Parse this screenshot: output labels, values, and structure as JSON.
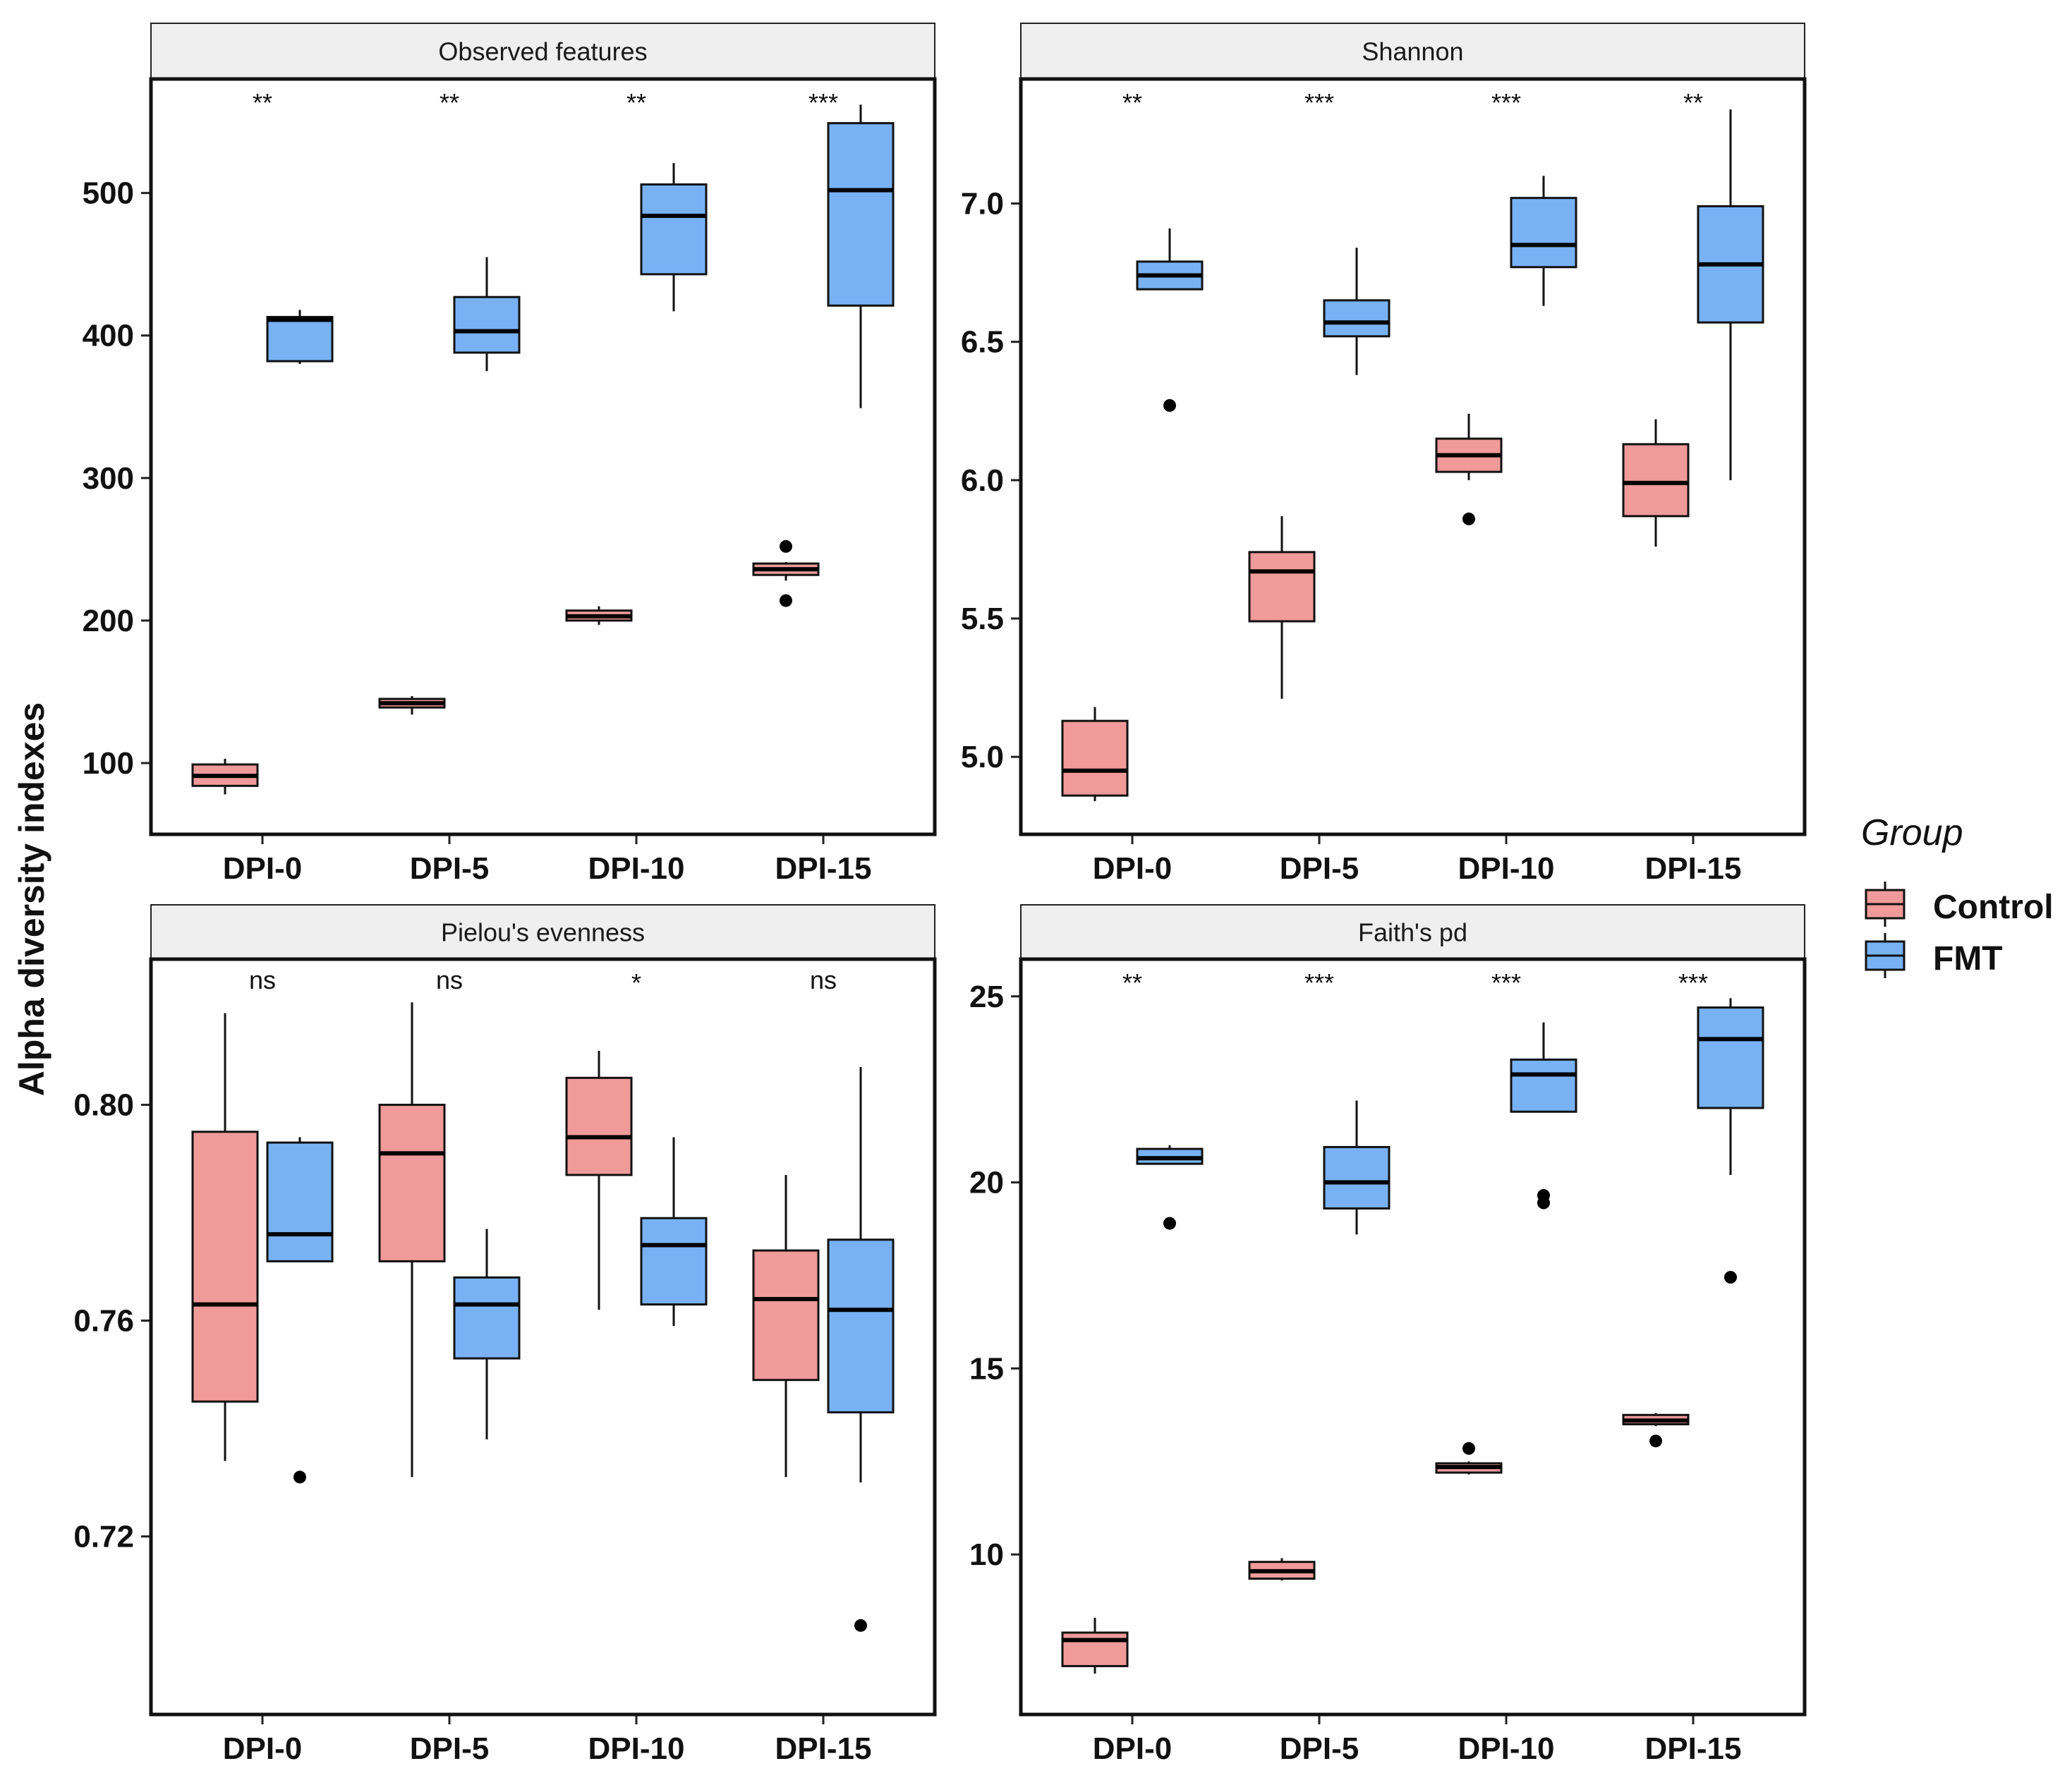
{
  "colors": {
    "control": "#F09A9A",
    "fmt": "#78B2F5",
    "strip": "#EFEFEF",
    "median": "#000000"
  },
  "chart_data": {
    "type": "boxplot",
    "ylabel": "Alpha diversity indexes",
    "categories": [
      "DPI-0",
      "DPI-5",
      "DPI-10",
      "DPI-15"
    ],
    "legend": {
      "title": "Group",
      "position": "right",
      "entries": [
        {
          "name": "Control",
          "color": "#F09A9A"
        },
        {
          "name": "FMT",
          "color": "#78B2F5"
        }
      ]
    },
    "panels": [
      {
        "title": "Observed features",
        "ylim": [
          50,
          580
        ],
        "ticks": [
          100,
          200,
          300,
          400,
          500
        ],
        "tick_labels": [
          "100",
          "200",
          "300",
          "400",
          "500"
        ],
        "significance": [
          "**",
          "**",
          "**",
          "***"
        ],
        "series": [
          {
            "name": "Control",
            "boxes": [
              {
                "lw": 78,
                "q1": 84,
                "med": 91,
                "q3": 99,
                "uw": 103,
                "out": []
              },
              {
                "lw": 134,
                "q1": 139,
                "med": 142,
                "q3": 145,
                "uw": 147,
                "out": []
              },
              {
                "lw": 197,
                "q1": 200,
                "med": 203,
                "q3": 207,
                "uw": 210,
                "out": []
              },
              {
                "lw": 228,
                "q1": 232,
                "med": 236,
                "q3": 240,
                "uw": 241,
                "out": [
                  252,
                  214
                ]
              }
            ]
          },
          {
            "name": "FMT",
            "boxes": [
              {
                "lw": 380,
                "q1": 382,
                "med": 411,
                "q3": 413,
                "uw": 418,
                "out": []
              },
              {
                "lw": 375,
                "q1": 388,
                "med": 403,
                "q3": 427,
                "uw": 455,
                "out": []
              },
              {
                "lw": 417,
                "q1": 443,
                "med": 484,
                "q3": 506,
                "uw": 521,
                "out": []
              },
              {
                "lw": 349,
                "q1": 421,
                "med": 502,
                "q3": 549,
                "uw": 562,
                "out": []
              }
            ]
          }
        ]
      },
      {
        "title": "Shannon",
        "ylim": [
          4.72,
          7.45
        ],
        "ticks": [
          5.0,
          5.5,
          6.0,
          6.5,
          7.0
        ],
        "tick_labels": [
          "5.0",
          "5.5",
          "6.0",
          "6.5",
          "7.0"
        ],
        "significance": [
          "**",
          "***",
          "***",
          "**"
        ],
        "series": [
          {
            "name": "Control",
            "boxes": [
              {
                "lw": 4.84,
                "q1": 4.86,
                "med": 4.95,
                "q3": 5.13,
                "uw": 5.18,
                "out": []
              },
              {
                "lw": 5.21,
                "q1": 5.49,
                "med": 5.67,
                "q3": 5.74,
                "uw": 5.87,
                "out": []
              },
              {
                "lw": 6.0,
                "q1": 6.03,
                "med": 6.09,
                "q3": 6.15,
                "uw": 6.24,
                "out": [
                  5.86
                ]
              },
              {
                "lw": 5.76,
                "q1": 5.87,
                "med": 5.99,
                "q3": 6.13,
                "uw": 6.22,
                "out": []
              }
            ]
          },
          {
            "name": "FMT",
            "boxes": [
              {
                "lw": 6.69,
                "q1": 6.69,
                "med": 6.74,
                "q3": 6.79,
                "uw": 6.91,
                "out": [
                  6.27
                ]
              },
              {
                "lw": 6.38,
                "q1": 6.52,
                "med": 6.57,
                "q3": 6.65,
                "uw": 6.84,
                "out": []
              },
              {
                "lw": 6.63,
                "q1": 6.77,
                "med": 6.85,
                "q3": 7.02,
                "uw": 7.1,
                "out": []
              },
              {
                "lw": 6.0,
                "q1": 6.57,
                "med": 6.78,
                "q3": 6.99,
                "uw": 7.34,
                "out": []
              }
            ]
          }
        ]
      },
      {
        "title": "Pielou's evenness",
        "ylim": [
          0.687,
          0.827
        ],
        "ticks": [
          0.72,
          0.76,
          0.8
        ],
        "tick_labels": [
          "0.72",
          "0.76",
          "0.80"
        ],
        "significance": [
          "ns",
          "ns",
          "*",
          "ns"
        ],
        "series": [
          {
            "name": "Control",
            "boxes": [
              {
                "lw": 0.734,
                "q1": 0.745,
                "med": 0.763,
                "q3": 0.795,
                "uw": 0.817,
                "out": []
              },
              {
                "lw": 0.731,
                "q1": 0.771,
                "med": 0.791,
                "q3": 0.8,
                "uw": 0.819,
                "out": []
              },
              {
                "lw": 0.762,
                "q1": 0.787,
                "med": 0.794,
                "q3": 0.805,
                "uw": 0.81,
                "out": []
              },
              {
                "lw": 0.731,
                "q1": 0.749,
                "med": 0.764,
                "q3": 0.773,
                "uw": 0.787,
                "out": []
              }
            ]
          },
          {
            "name": "FMT",
            "boxes": [
              {
                "lw": 0.771,
                "q1": 0.771,
                "med": 0.776,
                "q3": 0.793,
                "uw": 0.794,
                "out": [
                  0.731
                ]
              },
              {
                "lw": 0.738,
                "q1": 0.753,
                "med": 0.763,
                "q3": 0.768,
                "uw": 0.777,
                "out": []
              },
              {
                "lw": 0.759,
                "q1": 0.763,
                "med": 0.774,
                "q3": 0.779,
                "uw": 0.794,
                "out": []
              },
              {
                "lw": 0.73,
                "q1": 0.743,
                "med": 0.762,
                "q3": 0.775,
                "uw": 0.807,
                "out": [
                  0.7035
                ]
              }
            ]
          }
        ]
      },
      {
        "title": "Faith's pd",
        "ylim": [
          5.7,
          26.0
        ],
        "ticks": [
          10,
          15,
          20,
          25
        ],
        "tick_labels": [
          "10",
          "15",
          "20",
          "25"
        ],
        "significance": [
          "**",
          "***",
          "***",
          "***"
        ],
        "series": [
          {
            "name": "Control",
            "boxes": [
              {
                "lw": 6.8,
                "q1": 7.0,
                "med": 7.7,
                "q3": 7.9,
                "uw": 8.3,
                "out": []
              },
              {
                "lw": 9.3,
                "q1": 9.35,
                "med": 9.55,
                "q3": 9.8,
                "uw": 9.9,
                "out": []
              },
              {
                "lw": 12.15,
                "q1": 12.2,
                "med": 12.35,
                "q3": 12.45,
                "uw": 12.5,
                "out": [
                  12.85
                ]
              },
              {
                "lw": 13.45,
                "q1": 13.5,
                "med": 13.6,
                "q3": 13.75,
                "uw": 13.8,
                "out": [
                  13.05
                ]
              }
            ]
          },
          {
            "name": "FMT",
            "boxes": [
              {
                "lw": 20.5,
                "q1": 20.5,
                "med": 20.65,
                "q3": 20.9,
                "uw": 21.0,
                "out": [
                  18.9
                ]
              },
              {
                "lw": 18.6,
                "q1": 19.3,
                "med": 20.0,
                "q3": 20.95,
                "uw": 22.2,
                "out": []
              },
              {
                "lw": 21.9,
                "q1": 21.9,
                "med": 22.9,
                "q3": 23.3,
                "uw": 24.3,
                "out": [
                  19.65,
                  19.45
                ]
              },
              {
                "lw": 20.2,
                "q1": 22.0,
                "med": 23.85,
                "q3": 24.7,
                "uw": 24.95,
                "out": [
                  17.45
                ]
              }
            ]
          }
        ]
      }
    ]
  }
}
